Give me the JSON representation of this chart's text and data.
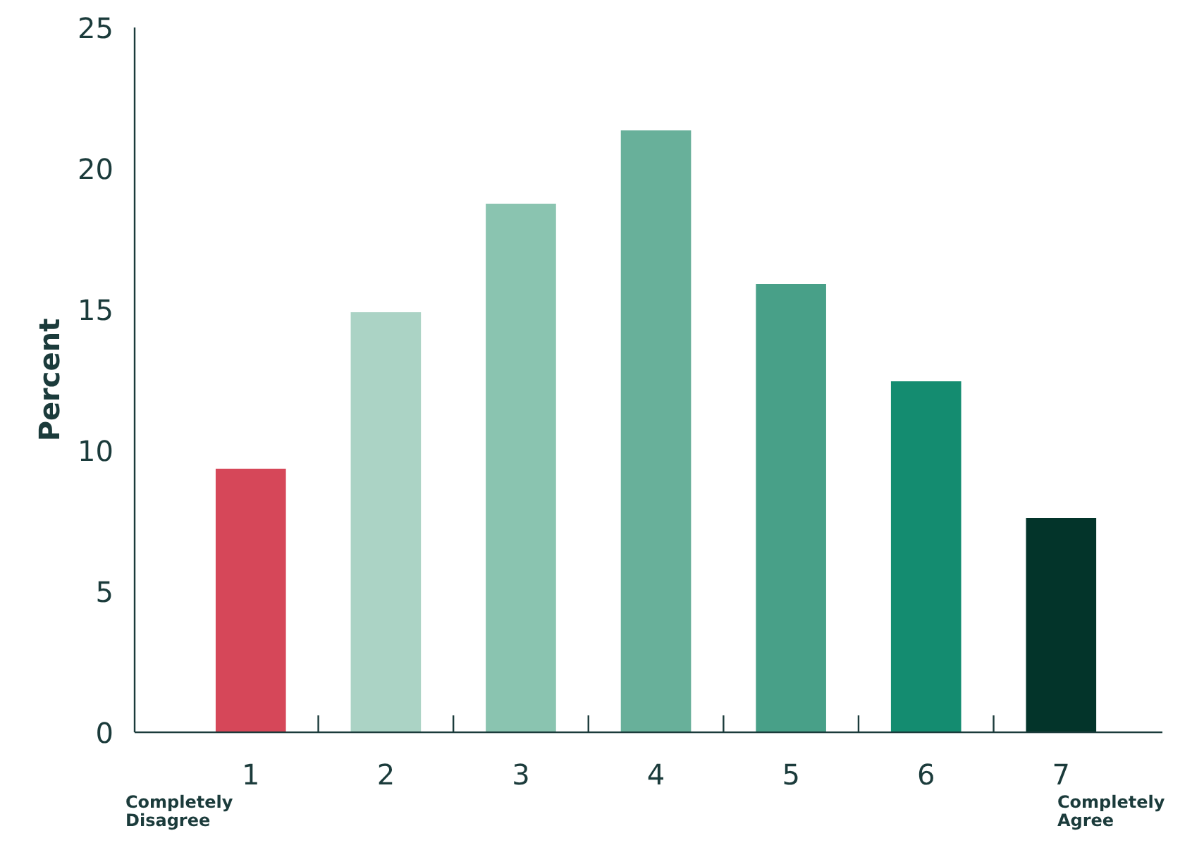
{
  "chart_data": {
    "type": "bar",
    "ylabel": "Percent",
    "categories": [
      "1",
      "2",
      "3",
      "4",
      "5",
      "6",
      "7"
    ],
    "values": [
      9.35,
      14.9,
      18.75,
      21.35,
      15.9,
      12.45,
      7.6
    ],
    "colors": [
      "#d64759",
      "#abd3c5",
      "#8ac4b0",
      "#68b09a",
      "#48a088",
      "#148c70",
      "#03342a"
    ],
    "ylim": [
      0,
      25
    ],
    "yticks": [
      0,
      5,
      10,
      15,
      20,
      25
    ],
    "grid": false,
    "annotations": [
      "Completely Disagree",
      "Completely Agree"
    ]
  }
}
